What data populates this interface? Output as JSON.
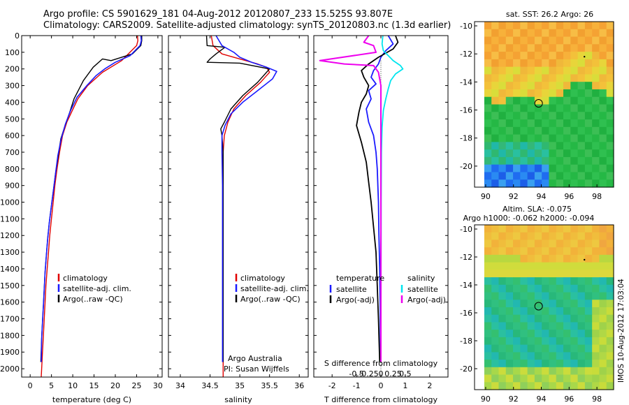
{
  "header": {
    "line1": "Argo profile: CS 5901629_181 04-Aug-2012 20120807_233 15.525S 93.807E",
    "line2": "Climatology: CARS2009. Satellite-adjusted climatology: synTS_20120803.nc (1.3d earlier)"
  },
  "side_label": "IMOS 10-Aug-2012 17:03:04",
  "colors": {
    "climatology": "#e00000",
    "satellite": "#1a1aff",
    "argo": "#000000",
    "cyan": "#00e5ee",
    "magenta": "#ee00ee"
  },
  "chart_data": [
    {
      "type": "line",
      "id": "temperature",
      "xlabel": "temperature (deg C)",
      "xlim": [
        -2,
        31
      ],
      "xticks": [
        0,
        5,
        10,
        15,
        20,
        25,
        30
      ],
      "ylim": [
        2050,
        0
      ],
      "yticks": [
        0,
        100,
        200,
        300,
        400,
        500,
        600,
        700,
        800,
        900,
        1000,
        1100,
        1200,
        1300,
        1400,
        1500,
        1600,
        1700,
        1800,
        1900,
        2000
      ],
      "legend": [
        "climatology",
        "satellite-adj. clim.",
        "Argo(..raw -QC)"
      ],
      "series": [
        {
          "name": "climatology",
          "color": "#e00000",
          "width": 1.4,
          "x": [
            25.2,
            25.3,
            25.0,
            21.5,
            17.0,
            13.5,
            11.2,
            9.7,
            8.6,
            7.6,
            6.9,
            6.3,
            5.8,
            5.4,
            5.0,
            4.6,
            4.3,
            4.0,
            3.7,
            3.5,
            3.3,
            3.1,
            2.9,
            2.7,
            2.6
          ],
          "y": [
            0,
            30,
            60,
            150,
            220,
            300,
            380,
            460,
            520,
            600,
            700,
            800,
            900,
            1000,
            1100,
            1200,
            1300,
            1400,
            1500,
            1600,
            1700,
            1800,
            1900,
            2000,
            2050
          ]
        },
        {
          "name": "Argo",
          "color": "#000000",
          "width": 1.4,
          "x": [
            26.2,
            26.2,
            26.0,
            24.0,
            19.0,
            17.0,
            14.8,
            12.5,
            10.3,
            9.3,
            8.2,
            7.2,
            6.6,
            6.0,
            5.5,
            5.0,
            4.5,
            4.1,
            3.8,
            3.5,
            3.3,
            3.1,
            2.9,
            2.7,
            2.5
          ],
          "y": [
            0,
            30,
            60,
            110,
            150,
            140,
            190,
            270,
            380,
            460,
            540,
            620,
            720,
            820,
            920,
            1020,
            1120,
            1220,
            1320,
            1420,
            1520,
            1620,
            1720,
            1820,
            1960
          ]
        },
        {
          "name": "satellite-adj. clim.",
          "color": "#1a1aff",
          "width": 1.6,
          "x": [
            26.0,
            26.1,
            25.8,
            23.5,
            20.0,
            17.5,
            15.5,
            13.3,
            11.0,
            9.5,
            8.3,
            7.3,
            6.5,
            6.0,
            5.5,
            5.0,
            4.5,
            4.1,
            3.8,
            3.5,
            3.3,
            3.1,
            2.9,
            2.7,
            2.6
          ],
          "y": [
            0,
            30,
            60,
            120,
            160,
            200,
            240,
            300,
            370,
            450,
            530,
            620,
            720,
            820,
            920,
            1020,
            1120,
            1220,
            1320,
            1420,
            1520,
            1620,
            1720,
            1820,
            1960
          ]
        }
      ]
    },
    {
      "type": "line",
      "id": "salinity",
      "xlabel": "salinity",
      "xlim": [
        33.8,
        36.15
      ],
      "xticks": [
        34,
        34.5,
        35,
        35.5,
        36
      ],
      "ylim": [
        2050,
        0
      ],
      "legend": [
        "climatology",
        "satellite-adj. clim.",
        "Argo(..raw -QC)"
      ],
      "annotation": [
        "Argo Australia",
        "PI: Susan Wijffels"
      ],
      "series": [
        {
          "name": "climatology",
          "color": "#e00000",
          "width": 1.4,
          "x": [
            34.52,
            34.55,
            34.7,
            35.0,
            35.3,
            35.45,
            35.5,
            35.35,
            35.1,
            34.9,
            34.8,
            34.74,
            34.72,
            34.72,
            34.72,
            34.72,
            34.72,
            34.72,
            34.72,
            34.72,
            34.72,
            34.72
          ],
          "y": [
            0,
            60,
            110,
            140,
            170,
            190,
            220,
            280,
            360,
            440,
            520,
            600,
            700,
            800,
            900,
            1000,
            1200,
            1400,
            1600,
            1800,
            1950,
            2050
          ]
        },
        {
          "name": "Argo",
          "color": "#000000",
          "width": 1.4,
          "x": [
            34.44,
            34.45,
            34.75,
            34.6,
            34.5,
            34.45,
            35.0,
            35.5,
            35.3,
            35.05,
            34.85,
            34.74,
            34.68,
            34.7,
            34.72,
            34.72,
            34.72,
            34.72,
            34.72,
            34.72,
            34.72
          ],
          "y": [
            0,
            60,
            70,
            110,
            140,
            160,
            165,
            200,
            280,
            360,
            440,
            520,
            560,
            600,
            700,
            900,
            1100,
            1300,
            1500,
            1700,
            1960
          ]
        },
        {
          "name": "satellite-adj. clim.",
          "color": "#1a1aff",
          "width": 1.6,
          "x": [
            34.6,
            34.7,
            34.9,
            35.0,
            35.2,
            35.45,
            35.62,
            35.55,
            35.3,
            35.05,
            34.85,
            34.75,
            34.7,
            34.7,
            34.71,
            34.71,
            34.71,
            34.71,
            34.71,
            34.71
          ],
          "y": [
            0,
            60,
            100,
            130,
            160,
            190,
            215,
            260,
            330,
            400,
            470,
            540,
            600,
            700,
            900,
            1100,
            1300,
            1500,
            1700,
            1960
          ]
        }
      ]
    },
    {
      "type": "line",
      "id": "difference",
      "xlabel": "T difference from climatology",
      "xlabel_top": "S difference from climatology",
      "xlim": [
        -2.75,
        2.75
      ],
      "xticks": [
        -2,
        -1,
        0,
        1,
        2
      ],
      "sticks": [
        {
          "pos": -0.5,
          "label": "-0.5"
        },
        {
          "pos": -0.25,
          "label": "-0.25"
        },
        {
          "pos": 0,
          "label": "0"
        },
        {
          "pos": 0.25,
          "label": "0.25"
        },
        {
          "pos": 0.5,
          "label": "0.5"
        }
      ],
      "ylim": [
        2050,
        0
      ],
      "legend_left_title": "temperature",
      "legend_right_title": "salinity",
      "legend": [
        "satellite",
        "Argo(-adj)",
        "satellite",
        "Argo(-adj)"
      ],
      "series": [
        {
          "name": "T satellite",
          "color": "#1a1aff",
          "width": 1.8,
          "x": [
            0.3,
            0.5,
            0.2,
            0.0,
            -0.1,
            -0.3,
            -0.4,
            -0.2,
            -0.5,
            -0.4,
            -0.6,
            -0.5,
            -0.3,
            -0.2,
            -0.15,
            -0.1,
            -0.08,
            -0.05,
            -0.03,
            -0.02,
            0.0
          ],
          "y": [
            0,
            50,
            90,
            130,
            170,
            210,
            250,
            290,
            330,
            380,
            440,
            520,
            600,
            700,
            800,
            1000,
            1200,
            1400,
            1600,
            1800,
            1960
          ]
        },
        {
          "name": "T Argo",
          "color": "#000000",
          "width": 1.8,
          "x": [
            0.6,
            0.7,
            0.5,
            -0.1,
            -0.5,
            -0.8,
            -0.7,
            -0.5,
            -0.6,
            -0.8,
            -0.9,
            -1.0,
            -0.8,
            -0.6,
            -0.5,
            -0.4,
            -0.3,
            -0.2,
            -0.15,
            -0.1,
            -0.05
          ],
          "y": [
            0,
            40,
            80,
            130,
            170,
            210,
            250,
            300,
            350,
            400,
            460,
            540,
            640,
            760,
            880,
            1000,
            1150,
            1300,
            1500,
            1700,
            1960
          ]
        },
        {
          "name": "S satellite",
          "color": "#00e5ee",
          "width": 1.8,
          "x": [
            0.08,
            0.05,
            0.1,
            0.3,
            0.5,
            0.8,
            0.9,
            0.6,
            0.4,
            0.3,
            0.2,
            0.1,
            0.05,
            0.02,
            0.01,
            0.0
          ],
          "y": [
            0,
            50,
            90,
            120,
            150,
            180,
            200,
            230,
            270,
            320,
            380,
            450,
            550,
            700,
            1000,
            1960
          ]
        },
        {
          "name": "S Argo",
          "color": "#ee00ee",
          "width": 2.0,
          "x": [
            -0.5,
            -0.7,
            -0.3,
            -0.2,
            -2.5,
            -1.5,
            -0.3,
            -0.1,
            0.0,
            0.0,
            0.0
          ],
          "y": [
            0,
            40,
            60,
            100,
            150,
            170,
            180,
            220,
            300,
            600,
            1960
          ]
        }
      ],
      "dotted_zero": true
    }
  ],
  "maps": [
    {
      "id": "sst-map",
      "title": "sat. SST: 26.2  Argo: 26",
      "xticks": [
        "90",
        "92",
        "94",
        "96",
        "98"
      ],
      "yticks": [
        "-10",
        "-12",
        "-14",
        "-16",
        "-18",
        "-20"
      ],
      "xlim": [
        89.2,
        99.2
      ],
      "ylim": [
        -21.5,
        -9.7
      ],
      "argo_position": {
        "lon": 93.807,
        "lat": -15.525
      }
    },
    {
      "id": "sla-map",
      "title_line1": "Altim. SLA: -0.075",
      "title_line2": "Argo h1000: -0.062 h2000: -0.094",
      "xticks": [
        "90",
        "92",
        "94",
        "96",
        "98"
      ],
      "yticks": [
        "-10",
        "-12",
        "-14",
        "-16",
        "-18",
        "-20"
      ],
      "xlim": [
        89.2,
        99.2
      ],
      "ylim": [
        -21.5,
        -9.7
      ],
      "argo_position": {
        "lon": 93.807,
        "lat": -15.525
      }
    }
  ]
}
